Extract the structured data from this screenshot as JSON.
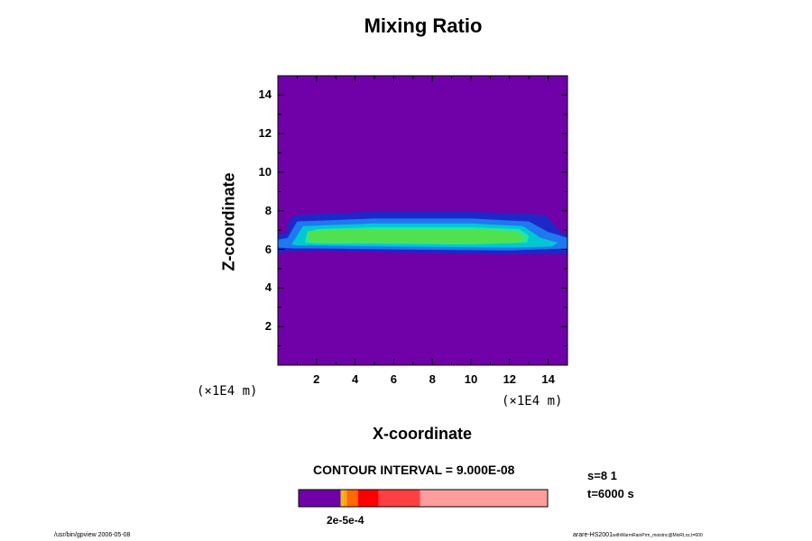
{
  "chart_data": {
    "type": "heatmap",
    "title": "Mixing Ratio",
    "xlabel": "X-coordinate",
    "ylabel": "Z-coordinate",
    "x_unit": "(×1E4 m)",
    "z_unit": "(×1E4 m)",
    "xlim": [
      0,
      15
    ],
    "ylim": [
      0,
      15
    ],
    "x_ticks": [
      2,
      4,
      6,
      8,
      10,
      12,
      14
    ],
    "y_ticks": [
      2,
      4,
      6,
      8,
      10,
      12,
      14
    ],
    "contour_interval_text": "CONTOUR INTERVAL = 9.000E-08",
    "colors": {
      "background": "#7000a8",
      "level1": "#1e28c8",
      "level2": "#1e78f0",
      "level3": "#00c8d2",
      "level4": "#28e6a0",
      "level5": "#50e150"
    },
    "colorbar": {
      "segments": [
        {
          "color": "#7000a8",
          "fraction": 0.169
        },
        {
          "color": "#e0c000",
          "fraction": 0.012
        },
        {
          "color": "#ffa020",
          "fraction": 0.012
        },
        {
          "color": "#ff6a00",
          "fraction": 0.045
        },
        {
          "color": "#ff0000",
          "fraction": 0.083
        },
        {
          "color": "#ff4040",
          "fraction": 0.167
        },
        {
          "color": "#ff9c9c",
          "fraction": 0.512
        }
      ],
      "label": "2e-5e-4"
    },
    "info_s": "s=8 1",
    "info_t": "t=6000 s"
  },
  "footer": {
    "left": "/usr/bin/gpview 2006-05-08",
    "right_main": "arare-HS2001",
    "right_small": "withWarmRainPrm_moistnc@MixRt,xz,t=600"
  }
}
